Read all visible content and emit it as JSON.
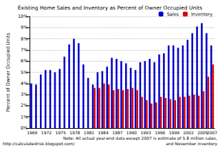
{
  "chart_data": {
    "type": "bar",
    "title": "Existing Home Sales and Inventory as Percent of Owner Occupied Units",
    "y_label": "Percent of Owner Occupied Units",
    "annotations": [
      "Note: All actual year-end data except 2007 is estimate of 5.8 million sales,",
      "and November inventory",
      "http://calculatedrisk.blogspot.com/"
    ],
    "categories": [
      "1969",
      null,
      null,
      "1972",
      null,
      null,
      "1975",
      null,
      null,
      "1978",
      null,
      null,
      "1981",
      null,
      null,
      "1984",
      null,
      null,
      "1987",
      null,
      null,
      "1990",
      null,
      null,
      "1993",
      null,
      null,
      "1996",
      null,
      null,
      "1999",
      null,
      null,
      "2002",
      null,
      null,
      "2005",
      null,
      "2007"
    ],
    "series": [
      {
        "name": "Sales",
        "color": "#0000cc",
        "values": [
          4.0,
          3.9,
          4.8,
          5.2,
          5.2,
          5.0,
          5.3,
          6.4,
          7.5,
          8.0,
          7.6,
          5.7,
          4.5,
          3.9,
          5.0,
          5.1,
          5.5,
          6.3,
          6.2,
          6.0,
          5.8,
          5.4,
          5.2,
          5.9,
          6.0,
          6.2,
          5.9,
          6.6,
          6.7,
          7.4,
          7.4,
          7.2,
          7.4,
          7.9,
          8.5,
          9.1,
          9.4,
          8.5,
          7.4
        ]
      },
      {
        "name": "Inventory",
        "color": "#dd0000",
        "values": [
          null,
          null,
          null,
          null,
          null,
          null,
          null,
          null,
          null,
          null,
          null,
          null,
          null,
          3.6,
          3.6,
          4.0,
          3.9,
          3.4,
          3.5,
          3.4,
          3.5,
          3.6,
          3.4,
          2.8,
          2.5,
          2.2,
          2.3,
          2.8,
          2.7,
          2.6,
          2.5,
          2.8,
          2.8,
          2.9,
          3.0,
          2.9,
          3.3,
          4.6,
          5.7
        ]
      }
    ],
    "ylim": [
      0,
      10
    ],
    "yticks": [
      {
        "value": 0,
        "label": "0%"
      },
      {
        "value": 1,
        "label": "1%"
      },
      {
        "value": 2,
        "label": "2%"
      },
      {
        "value": 3,
        "label": "3%"
      },
      {
        "value": 4,
        "label": "4%"
      },
      {
        "value": 5,
        "label": "5%"
      },
      {
        "value": 6,
        "label": "6%"
      },
      {
        "value": 7,
        "label": "7%"
      },
      {
        "value": 8,
        "label": "8%"
      },
      {
        "value": 9,
        "label": "9%"
      },
      {
        "value": 10,
        "label": "10%"
      }
    ],
    "grid": true,
    "legend": "top-right"
  }
}
